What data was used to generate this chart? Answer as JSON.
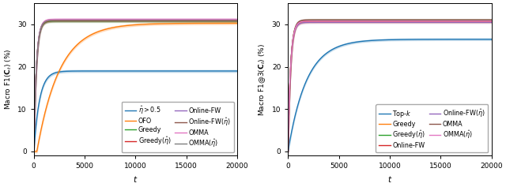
{
  "fig_width": 6.4,
  "fig_height": 2.37,
  "dpi": 100,
  "t_max": 20000,
  "left_plot": {
    "ylabel": "Macro F1($\\mathbf{C}_t$) (%)",
    "xlabel": "$t$",
    "ylim": [
      -1,
      35
    ],
    "yticks": [
      0,
      10,
      20,
      30
    ],
    "xticks": [
      0,
      5000,
      10000,
      15000,
      20000
    ],
    "xticklabels": [
      "0",
      "5000",
      "10000",
      "15000",
      "20000"
    ],
    "lines": [
      {
        "label": "$\\hat{\\eta} > 0.5$",
        "color": "#1f77b4",
        "final": 19.0,
        "rise": 0.0018,
        "shift": 0,
        "lw": 1.0,
        "band": 0.25
      },
      {
        "label": "OFO",
        "color": "#ff7f0e",
        "final": 30.3,
        "rise": 0.00045,
        "shift": 300,
        "lw": 1.0,
        "band": 0.25
      },
      {
        "label": "Greedy",
        "color": "#2ca02c",
        "final": 30.8,
        "rise": 0.004,
        "shift": 0,
        "lw": 1.0,
        "band": 0.25
      },
      {
        "label": "Greedy($\\hat{\\eta}$)",
        "color": "#d62728",
        "final": 30.9,
        "rise": 0.004,
        "shift": 0,
        "lw": 1.0,
        "band": 0.25
      },
      {
        "label": "Online-FW",
        "color": "#9467bd",
        "final": 31.1,
        "rise": 0.004,
        "shift": 0,
        "lw": 1.0,
        "band": 0.25
      },
      {
        "label": "Online-FW($\\hat{\\eta}$)",
        "color": "#8c564b",
        "final": 31.0,
        "rise": 0.004,
        "shift": 0,
        "lw": 1.0,
        "band": 0.25
      },
      {
        "label": "OMMA",
        "color": "#e377c2",
        "final": 31.2,
        "rise": 0.004,
        "shift": 0,
        "lw": 1.0,
        "band": 0.25
      },
      {
        "label": "OMMA($\\hat{\\eta}$)",
        "color": "#7f7f7f",
        "final": 31.0,
        "rise": 0.004,
        "shift": 0,
        "lw": 1.0,
        "band": 0.25
      }
    ]
  },
  "right_plot": {
    "ylabel": "Macro F1@3($\\mathbf{C}_t$) (%)",
    "xlabel": "$t$",
    "ylim": [
      -1,
      35
    ],
    "yticks": [
      0,
      10,
      20,
      30
    ],
    "xticks": [
      0,
      5000,
      10000,
      15000,
      20000
    ],
    "xticklabels": [
      "0",
      "5000",
      "10000",
      "15000",
      "20000"
    ],
    "lines": [
      {
        "label": "Top-$k$",
        "color": "#1f77b4",
        "final": 26.5,
        "rise": 0.00055,
        "shift": 0,
        "lw": 1.0,
        "band": 0.2
      },
      {
        "label": "Greedy",
        "color": "#ff7f0e",
        "final": 30.6,
        "rise": 0.004,
        "shift": 0,
        "lw": 1.0,
        "band": 0.2
      },
      {
        "label": "Greedy($\\hat{\\eta}$)",
        "color": "#2ca02c",
        "final": 30.9,
        "rise": 0.004,
        "shift": 0,
        "lw": 1.0,
        "band": 0.2
      },
      {
        "label": "Online-FW",
        "color": "#d62728",
        "final": 30.8,
        "rise": 0.004,
        "shift": 0,
        "lw": 1.0,
        "band": 0.2
      },
      {
        "label": "Online-FW($\\hat{\\eta}$)",
        "color": "#9467bd",
        "final": 30.5,
        "rise": 0.004,
        "shift": 0,
        "lw": 1.0,
        "band": 0.2
      },
      {
        "label": "OMMA",
        "color": "#8c564b",
        "final": 31.1,
        "rise": 0.004,
        "shift": 0,
        "lw": 1.0,
        "band": 0.2
      },
      {
        "label": "OMMA($\\hat{\\eta}$)",
        "color": "#e377c2",
        "final": 30.8,
        "rise": 0.004,
        "shift": 0,
        "lw": 1.0,
        "band": 0.2
      }
    ]
  }
}
